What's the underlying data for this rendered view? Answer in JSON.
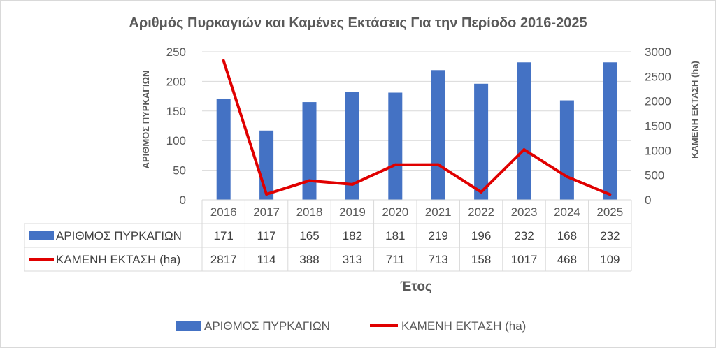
{
  "chart_data": {
    "type": "bar",
    "title": "Αριθμός Πυρκαγιών και Καμένες Εκτάσεις Για την Περίοδο 2016-2025",
    "xlabel": "Έτος",
    "ylabel_left": "ΑΡΙΘΜΟΣ ΠΥΡΚΑΓΙΩΝ",
    "ylabel_right": "ΚΑΜΕΝΗ ΕΚΤΑΣΗ (ha)",
    "categories": [
      "2016",
      "2017",
      "2018",
      "2019",
      "2020",
      "2021",
      "2022",
      "2023",
      "2024",
      "2025"
    ],
    "y_left": {
      "range": [
        0,
        250
      ],
      "ticks": [
        0,
        50,
        100,
        150,
        200,
        250
      ]
    },
    "y_right": {
      "range": [
        0,
        3000
      ],
      "ticks": [
        0,
        500,
        1000,
        1500,
        2000,
        2500,
        3000
      ]
    },
    "grid": true,
    "legend_position": "bottom",
    "data_table": true,
    "series": [
      {
        "name": "ΑΡΙΘΜΟΣ ΠΥΡΚΑΓΙΩΝ",
        "type": "bar",
        "axis": "left",
        "color": "#4472c4",
        "values": [
          171,
          117,
          165,
          182,
          181,
          219,
          196,
          232,
          168,
          232
        ]
      },
      {
        "name": "ΚΑΜΕΝΗ ΕΚΤΑΣΗ (ha)",
        "type": "line",
        "axis": "right",
        "color": "#e00000",
        "values": [
          2817,
          114,
          388,
          313,
          711,
          713,
          158,
          1017,
          468,
          109
        ]
      }
    ]
  }
}
